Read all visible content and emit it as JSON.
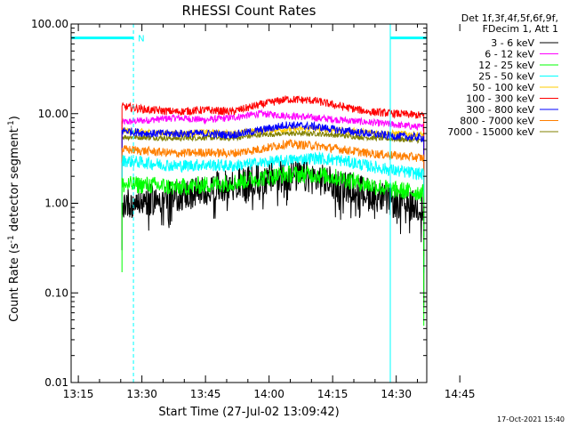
{
  "chart_data": {
    "type": "line",
    "title": "RHESSI Count Rates",
    "xlabel": "Start Time (27-Jul-02 13:09:42)",
    "ylabel_main": "Count Rate (s",
    "ylabel_sup": "-1",
    "ylabel_rest": " detector segment",
    "ylabel_close": ")",
    "y_scale": "log",
    "ylim": [
      0.01,
      100
    ],
    "xlim_minutes": [
      13.3,
      97.2
    ],
    "x_tick_labels": [
      {
        "label": "13:15",
        "minute": 15
      },
      {
        "label": "13:30",
        "minute": 30
      },
      {
        "label": "13:45",
        "minute": 45
      },
      {
        "label": "14:00",
        "minute": 60
      },
      {
        "label": "14:15",
        "minute": 75
      },
      {
        "label": "14:30",
        "minute": 90
      },
      {
        "label": "14:45",
        "minute": 105
      }
    ],
    "y_tick_labels": [
      {
        "label": "100.00",
        "value": 100
      },
      {
        "label": "10.00",
        "value": 10
      },
      {
        "label": "1.00",
        "value": 1
      },
      {
        "label": "0.10",
        "value": 0.1
      },
      {
        "label": "0.01",
        "value": 0.01
      }
    ],
    "legend_header": [
      "Det 1f,3f,4f,5f,6f,9f,",
      "FDecim 1, Att 1"
    ],
    "legend_position": "right",
    "data_start_minute": 25.3,
    "data_end_minute": 96.5,
    "series": [
      {
        "name": "3 - 6 keV",
        "color": "#000000",
        "y": [
          1.0,
          1.1,
          1.2,
          1.4,
          1.6,
          1.8,
          2.0,
          1.9,
          1.6,
          1.3,
          1.0,
          0.9
        ]
      },
      {
        "name": "6 - 12 keV",
        "color": "#ff00ff",
        "y": [
          8.0,
          8.5,
          9.0,
          8.5,
          9.0,
          10.0,
          9.5,
          9.0,
          8.5,
          8.0,
          7.5,
          7.0
        ]
      },
      {
        "name": "12 - 25 keV",
        "color": "#00ff00",
        "y": [
          1.6,
          1.6,
          1.5,
          1.6,
          1.7,
          1.9,
          2.1,
          2.1,
          1.9,
          1.6,
          1.4,
          1.3
        ]
      },
      {
        "name": "25 - 50 keV",
        "color": "#00ffff",
        "y": [
          3.0,
          2.8,
          2.6,
          2.7,
          2.6,
          2.8,
          3.0,
          3.2,
          3.0,
          2.6,
          2.3,
          2.1
        ]
      },
      {
        "name": "50 - 100 keV",
        "color": "#ffcc00",
        "y": [
          6.5,
          6.2,
          6.0,
          6.2,
          6.0,
          6.5,
          6.7,
          6.8,
          6.5,
          6.2,
          6.0,
          5.8
        ]
      },
      {
        "name": "100 - 300 keV",
        "color": "#ff0000",
        "y": [
          12.0,
          11.0,
          10.5,
          11.0,
          10.5,
          12.5,
          14.5,
          14.0,
          12.0,
          10.5,
          10.0,
          9.5
        ]
      },
      {
        "name": "300 - 800 keV",
        "color": "#0000ff",
        "y": [
          6.5,
          6.0,
          6.0,
          6.0,
          5.8,
          6.5,
          7.5,
          7.2,
          6.5,
          6.0,
          5.6,
          5.4
        ]
      },
      {
        "name": "800 - 7000 keV",
        "color": "#ff7f00",
        "y": [
          4.0,
          3.8,
          3.6,
          3.7,
          3.6,
          4.0,
          4.6,
          4.4,
          4.0,
          3.6,
          3.4,
          3.2
        ]
      },
      {
        "name": "7000 - 15000 keV",
        "color": "#808000",
        "y": [
          5.5,
          5.4,
          5.3,
          5.4,
          5.3,
          5.8,
          6.0,
          6.0,
          5.7,
          5.4,
          5.2,
          5.0
        ]
      }
    ],
    "attenuator_markers": {
      "color": "#00ffff",
      "label": "N",
      "vlines_minute": [
        13.3,
        28.0,
        88.6,
        105.0
      ],
      "bars": [
        {
          "from": 13.3,
          "to": 28.0,
          "value": 70
        },
        {
          "from": 88.6,
          "to": 105.0,
          "value": 70
        }
      ]
    }
  },
  "footer": {
    "timestamp": "17-Oct-2021 15:40"
  }
}
